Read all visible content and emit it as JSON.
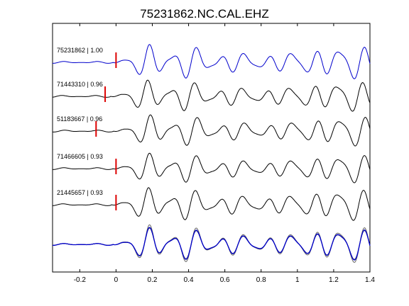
{
  "chart_data": {
    "type": "line",
    "title": "75231862.NC.CAL.EHZ",
    "xlabel": "",
    "ylabel": "",
    "xlim": [
      -0.35,
      1.4
    ],
    "xticks": [
      -0.2,
      0,
      0.2,
      0.4,
      0.6,
      0.8,
      1,
      1.2,
      1.4
    ],
    "xtick_labels": [
      "-0.2",
      "0",
      "0.2",
      "0.4",
      "0.6",
      "0.8",
      "1",
      "1.2",
      "1.4"
    ],
    "grid": false,
    "legend": "none",
    "traces": [
      {
        "label": "75231862 | 1.00",
        "color": "#0000cc",
        "pick": 0.0,
        "phase": 0.0,
        "amp": 1.1
      },
      {
        "label": "71443310 | 0.96",
        "color": "#000000",
        "pick": -0.06,
        "phase": -0.01,
        "amp": 1.0
      },
      {
        "label": "51183667 | 0.96",
        "color": "#000000",
        "pick": -0.11,
        "phase": 0.005,
        "amp": 1.0
      },
      {
        "label": "71466605 | 0.93",
        "color": "#000000",
        "pick": 0.0,
        "phase": 0.0,
        "amp": 0.95
      },
      {
        "label": "21445657 | 0.93",
        "color": "#000000",
        "pick": 0.0,
        "phase": -0.005,
        "amp": 1.05
      }
    ],
    "stack": {
      "colors": {
        "reference": "#0000cc",
        "others": "#666666"
      }
    },
    "pick_color": "#dd0000"
  }
}
